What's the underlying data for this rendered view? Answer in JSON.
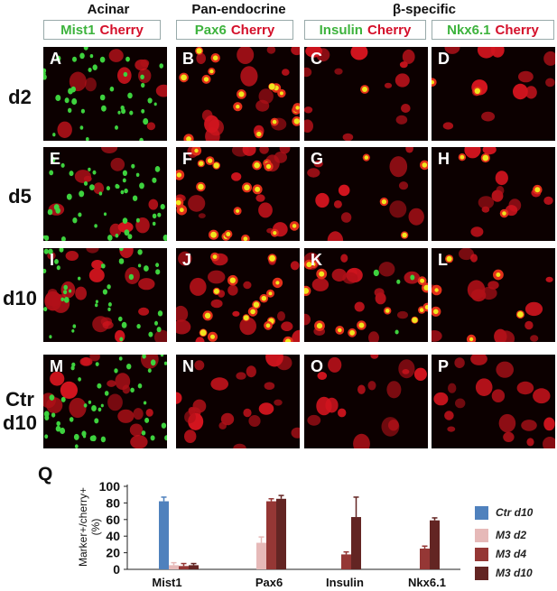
{
  "headers": {
    "acinar": "Acinar",
    "pan_endocrine": "Pan-endocrine",
    "beta_specific": "β-specific"
  },
  "marker_boxes": [
    {
      "green": "Mist1",
      "red": "Cherry"
    },
    {
      "green": "Pax6",
      "red": "Cherry"
    },
    {
      "green": "Insulin",
      "red": "Cherry"
    },
    {
      "green": "Nkx6.1",
      "red": "Cherry"
    }
  ],
  "row_labels": [
    {
      "line1": "d2",
      "line2": ""
    },
    {
      "line1": "d5",
      "line2": ""
    },
    {
      "line1": "d10",
      "line2": ""
    },
    {
      "line1": "Ctr",
      "line2": "d10"
    }
  ],
  "panel_letters": [
    "A",
    "B",
    "C",
    "D",
    "E",
    "F",
    "G",
    "H",
    "I",
    "J",
    "K",
    "L",
    "M",
    "N",
    "O",
    "P"
  ],
  "colors": {
    "ctr_d10": "#4f81bd",
    "m3_d2": "#e6b9b8",
    "m3_d4": "#953735",
    "m3_d10": "#632523",
    "stain_green": "#3db33d",
    "stain_red": "#d4102a"
  },
  "chart_label": "Q",
  "chart_data": {
    "type": "bar",
    "categories": [
      "Mist1",
      "Pax6",
      "Insulin",
      "Nkx6.1"
    ],
    "ylabel": "Marker+/cherry+ (%)",
    "ylabel_line1": "Marker+/cherry+",
    "ylabel_line2": "(%)",
    "ylim": [
      0,
      100
    ],
    "yticks": [
      "0",
      "20",
      "40",
      "60",
      "80",
      "100"
    ],
    "series": [
      {
        "name": "Ctr d10",
        "values": [
          82,
          0,
          0,
          0
        ],
        "errors": [
          5,
          0,
          0,
          0
        ]
      },
      {
        "name": "M3 d2",
        "values": [
          5,
          32,
          0,
          0
        ],
        "errors": [
          3,
          7,
          0,
          0
        ]
      },
      {
        "name": "M3 d4",
        "values": [
          4,
          82,
          18,
          25
        ],
        "errors": [
          3,
          3,
          3,
          3
        ]
      },
      {
        "name": "M3 d10",
        "values": [
          5,
          85,
          63,
          59
        ],
        "errors": [
          2,
          4,
          24,
          3
        ]
      }
    ],
    "legend_position": "right",
    "grid": false
  }
}
